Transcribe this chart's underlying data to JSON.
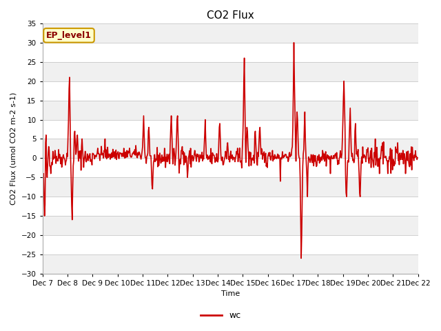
{
  "title": "CO2 Flux",
  "ylabel": "CO2 Flux (umol CO2 m-2 s-1)",
  "xlabel": "Time",
  "ylim": [
    -30,
    35
  ],
  "yticks": [
    -30,
    -25,
    -20,
    -15,
    -10,
    -5,
    0,
    5,
    10,
    15,
    20,
    25,
    30,
    35
  ],
  "line_color": "#cc0000",
  "line_width": 1.2,
  "fig_bg_color": "#ffffff",
  "plot_bg_color": "#ffffff",
  "band_color_light": "#f0f0f0",
  "band_color_white": "#ffffff",
  "legend_label_lower": "wc",
  "annotation_text": "EP_level1",
  "annotation_bg": "#ffffcc",
  "annotation_border": "#cc9900",
  "annotation_text_color": "#8b0000",
  "title_fontsize": 11,
  "label_fontsize": 8,
  "tick_fontsize": 7.5,
  "n_points": 720,
  "seed": 42
}
